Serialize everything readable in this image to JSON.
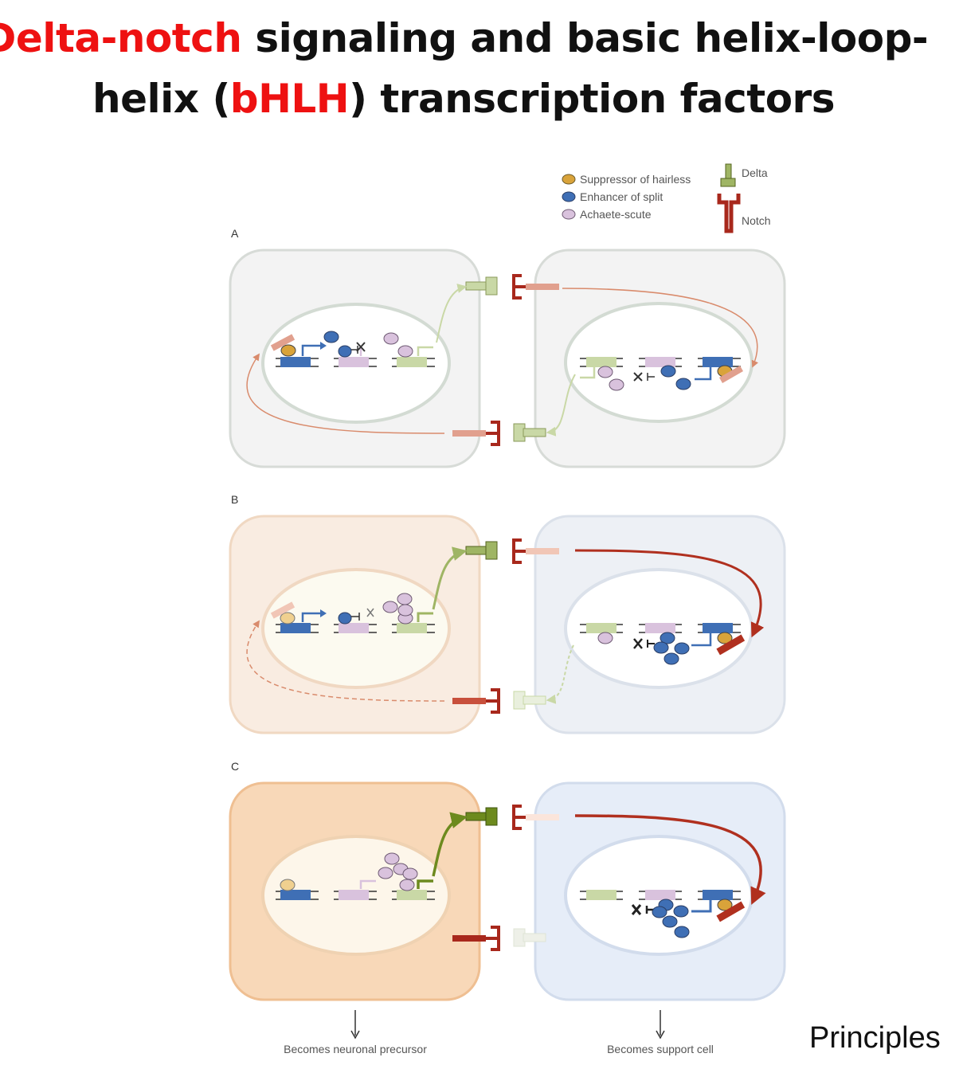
{
  "title": {
    "line1_highlight": "Delta-notch",
    "line1_rest": " signaling and basic helix-loop-",
    "line2_start": "helix (",
    "line2_highlight": "bHLH",
    "line2_end": ") transcription factors"
  },
  "legend": {
    "suppressor": "Suppressor of hairless",
    "enhancer": "Enhancer of split",
    "achaete": "Achaete-scute",
    "delta": "Delta",
    "notch": "Notch"
  },
  "panels": {
    "a": "A",
    "b": "B",
    "c": "C"
  },
  "outcomes": {
    "left": "Becomes neuronal precursor",
    "right": "Becomes support cell"
  },
  "corner_text": "Principles",
  "colors": {
    "highlight_red": "#ee1111",
    "suppressor": "#d9a33a",
    "enhancer": "#3f6fb5",
    "achaete": "#d9c2dd",
    "delta": "#9fb564",
    "notch": "#a8281c",
    "cell_grey": "#f3f3f3",
    "cell_orange": "#f8d2aa",
    "cell_blue": "#e6edf6"
  }
}
